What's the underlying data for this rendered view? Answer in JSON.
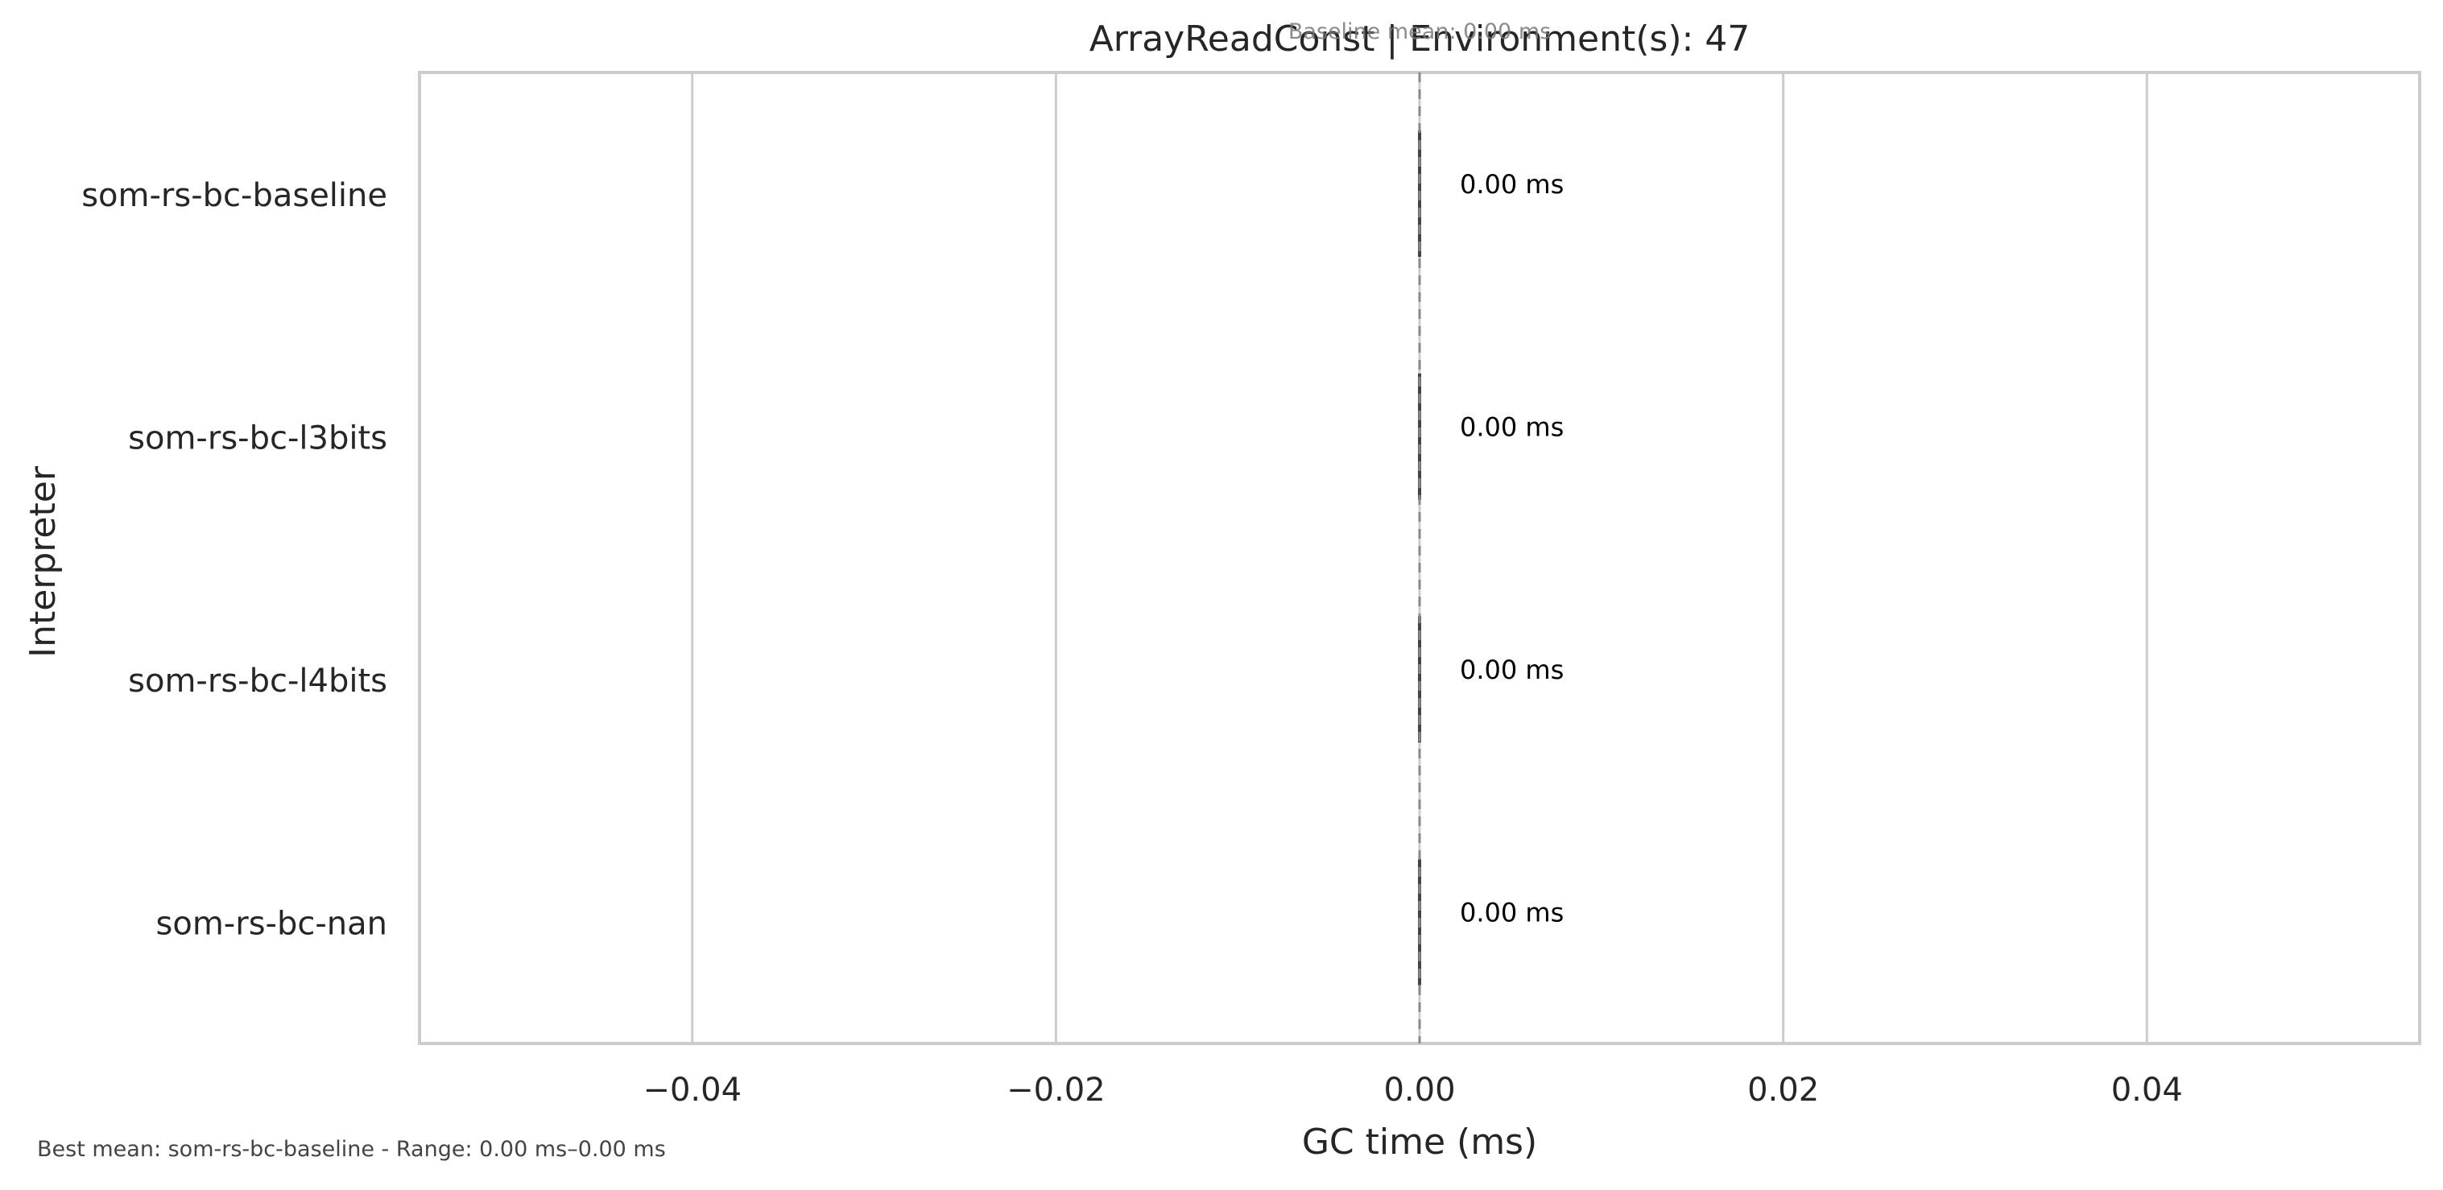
{
  "chart_data": {
    "type": "bar",
    "orientation": "horizontal",
    "title": "ArrayReadConst | Environment(s): 47",
    "baseline_annotation": "Baseline mean: 0.00 ms",
    "xlabel": "GC time (ms)",
    "ylabel": "Interpreter",
    "xlim": [
      -0.055,
      0.055
    ],
    "x_ticks": [
      -0.04,
      -0.02,
      0.0,
      0.02,
      0.04
    ],
    "x_tick_labels": [
      "−0.04",
      "−0.02",
      "0.00",
      "0.02",
      "0.04"
    ],
    "categories": [
      "som-rs-bc-baseline",
      "som-rs-bc-l3bits",
      "som-rs-bc-l4bits",
      "som-rs-bc-nan"
    ],
    "values": [
      0.0,
      0.0,
      0.0,
      0.0
    ],
    "data_labels": [
      "0.00 ms",
      "0.00 ms",
      "0.00 ms",
      "0.00 ms"
    ],
    "baseline_value": 0.0,
    "grid": "vertical",
    "legend": "none",
    "footer": "Best mean: som-rs-bc-baseline - Range: 0.00 ms–0.00 ms",
    "colors": {
      "frame": "#cccccc",
      "grid": "#cccccc",
      "bar": "#444444",
      "baseline_line": "#888888",
      "text": "#262626",
      "annotation": "#777777",
      "footer": "#444444"
    }
  }
}
